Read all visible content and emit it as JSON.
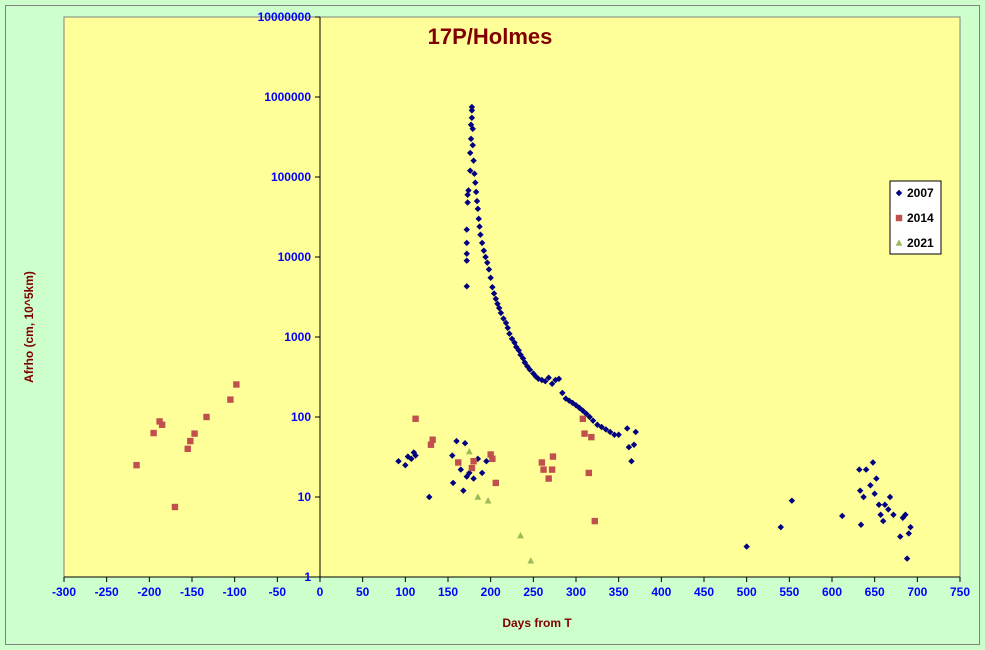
{
  "chart_data": {
    "type": "scatter",
    "title": "17P/Holmes",
    "xlabel": "Days from T",
    "ylabel": "Afrho (cm, 10^5km)",
    "xlim": [
      -300,
      750
    ],
    "xticks": [
      -300,
      -250,
      -200,
      -150,
      -100,
      -50,
      0,
      50,
      100,
      150,
      200,
      250,
      300,
      350,
      400,
      450,
      500,
      550,
      600,
      650,
      700,
      750
    ],
    "ylim": [
      1,
      10000000
    ],
    "yscale": "log",
    "yticks": [
      "1",
      "10",
      "100",
      "1000",
      "10000",
      "100000",
      "1000000",
      "10000000"
    ],
    "grid": false,
    "legend_position": "right",
    "colors": {
      "plot_background": "#ffff99",
      "page_background": "#ccffcc",
      "tick_labels": "#0000ff",
      "titles": "#800000"
    },
    "series": [
      {
        "name": "2007",
        "marker": "diamond",
        "color": "#000080",
        "points": [
          [
            92,
            28
          ],
          [
            100,
            25
          ],
          [
            103,
            32
          ],
          [
            107,
            30
          ],
          [
            110,
            36
          ],
          [
            112,
            33
          ],
          [
            128,
            10
          ],
          [
            155,
            33
          ],
          [
            156,
            15
          ],
          [
            160,
            50
          ],
          [
            165,
            22
          ],
          [
            168,
            12
          ],
          [
            170,
            47
          ],
          [
            172,
            18
          ],
          [
            175,
            20
          ],
          [
            180,
            17
          ],
          [
            185,
            30
          ],
          [
            190,
            20
          ],
          [
            195,
            28
          ],
          [
            172,
            4300
          ],
          [
            172,
            9000
          ],
          [
            172,
            11000
          ],
          [
            172,
            15000
          ],
          [
            172,
            22000
          ],
          [
            173,
            48000
          ],
          [
            173,
            60000
          ],
          [
            174,
            68000
          ],
          [
            176,
            120000
          ],
          [
            176,
            200000
          ],
          [
            177,
            300000
          ],
          [
            177,
            450000
          ],
          [
            178,
            550000
          ],
          [
            178,
            680000
          ],
          [
            178,
            750000
          ],
          [
            179,
            400000
          ],
          [
            179,
            250000
          ],
          [
            180,
            160000
          ],
          [
            181,
            110000
          ],
          [
            182,
            85000
          ],
          [
            183,
            65000
          ],
          [
            184,
            50000
          ],
          [
            185,
            40000
          ],
          [
            186,
            30000
          ],
          [
            187,
            24000
          ],
          [
            188,
            19000
          ],
          [
            190,
            15000
          ],
          [
            192,
            12000
          ],
          [
            194,
            10000
          ],
          [
            196,
            8500
          ],
          [
            198,
            7000
          ],
          [
            200,
            5500
          ],
          [
            202,
            4200
          ],
          [
            204,
            3500
          ],
          [
            206,
            3000
          ],
          [
            208,
            2600
          ],
          [
            210,
            2300
          ],
          [
            212,
            2000
          ],
          [
            215,
            1700
          ],
          [
            218,
            1500
          ],
          [
            220,
            1300
          ],
          [
            222,
            1100
          ],
          [
            225,
            950
          ],
          [
            228,
            850
          ],
          [
            230,
            750
          ],
          [
            233,
            680
          ],
          [
            235,
            600
          ],
          [
            238,
            540
          ],
          [
            240,
            480
          ],
          [
            243,
            430
          ],
          [
            246,
            390
          ],
          [
            250,
            350
          ],
          [
            253,
            320
          ],
          [
            256,
            300
          ],
          [
            260,
            290
          ],
          [
            264,
            280
          ],
          [
            268,
            310
          ],
          [
            272,
            260
          ],
          [
            276,
            290
          ],
          [
            280,
            300
          ],
          [
            284,
            200
          ],
          [
            288,
            170
          ],
          [
            292,
            160
          ],
          [
            296,
            150
          ],
          [
            300,
            140
          ],
          [
            304,
            130
          ],
          [
            308,
            120
          ],
          [
            312,
            110
          ],
          [
            316,
            100
          ],
          [
            320,
            90
          ],
          [
            325,
            80
          ],
          [
            330,
            75
          ],
          [
            335,
            70
          ],
          [
            340,
            65
          ],
          [
            345,
            60
          ],
          [
            350,
            60
          ],
          [
            360,
            72
          ],
          [
            362,
            42
          ],
          [
            365,
            28
          ],
          [
            368,
            45
          ],
          [
            370,
            65
          ],
          [
            500,
            2.4
          ],
          [
            540,
            4.2
          ],
          [
            553,
            9
          ],
          [
            612,
            5.8
          ],
          [
            632,
            22
          ],
          [
            633,
            12
          ],
          [
            634,
            4.5
          ],
          [
            637,
            10
          ],
          [
            640,
            22
          ],
          [
            645,
            14
          ],
          [
            648,
            27
          ],
          [
            650,
            11
          ],
          [
            652,
            17
          ],
          [
            655,
            8
          ],
          [
            657,
            6
          ],
          [
            660,
            5
          ],
          [
            662,
            8
          ],
          [
            666,
            7
          ],
          [
            668,
            10
          ],
          [
            672,
            6
          ],
          [
            680,
            3.2
          ],
          [
            683,
            5.5
          ],
          [
            686,
            6
          ],
          [
            688,
            1.7
          ],
          [
            690,
            3.5
          ],
          [
            692,
            4.2
          ]
        ]
      },
      {
        "name": "2014",
        "marker": "square",
        "color": "#c0504d",
        "points": [
          [
            -215,
            25
          ],
          [
            -195,
            63
          ],
          [
            -188,
            88
          ],
          [
            -185,
            80
          ],
          [
            -170,
            7.5
          ],
          [
            -155,
            40
          ],
          [
            -152,
            50
          ],
          [
            -147,
            62
          ],
          [
            -133,
            100
          ],
          [
            -105,
            165
          ],
          [
            -98,
            255
          ],
          [
            112,
            95
          ],
          [
            130,
            45
          ],
          [
            132,
            52
          ],
          [
            162,
            27
          ],
          [
            178,
            23
          ],
          [
            180,
            28
          ],
          [
            200,
            34
          ],
          [
            202,
            30
          ],
          [
            206,
            15
          ],
          [
            260,
            27
          ],
          [
            262,
            22
          ],
          [
            268,
            17
          ],
          [
            272,
            22
          ],
          [
            273,
            32
          ],
          [
            308,
            95
          ],
          [
            310,
            62
          ],
          [
            318,
            56
          ],
          [
            315,
            20
          ],
          [
            322,
            5
          ]
        ]
      },
      {
        "name": "2021",
        "marker": "triangle",
        "color": "#9bbb59",
        "points": [
          [
            175,
            37
          ],
          [
            185,
            10
          ],
          [
            197,
            9
          ],
          [
            235,
            3.3
          ],
          [
            247,
            1.6
          ]
        ]
      }
    ]
  }
}
